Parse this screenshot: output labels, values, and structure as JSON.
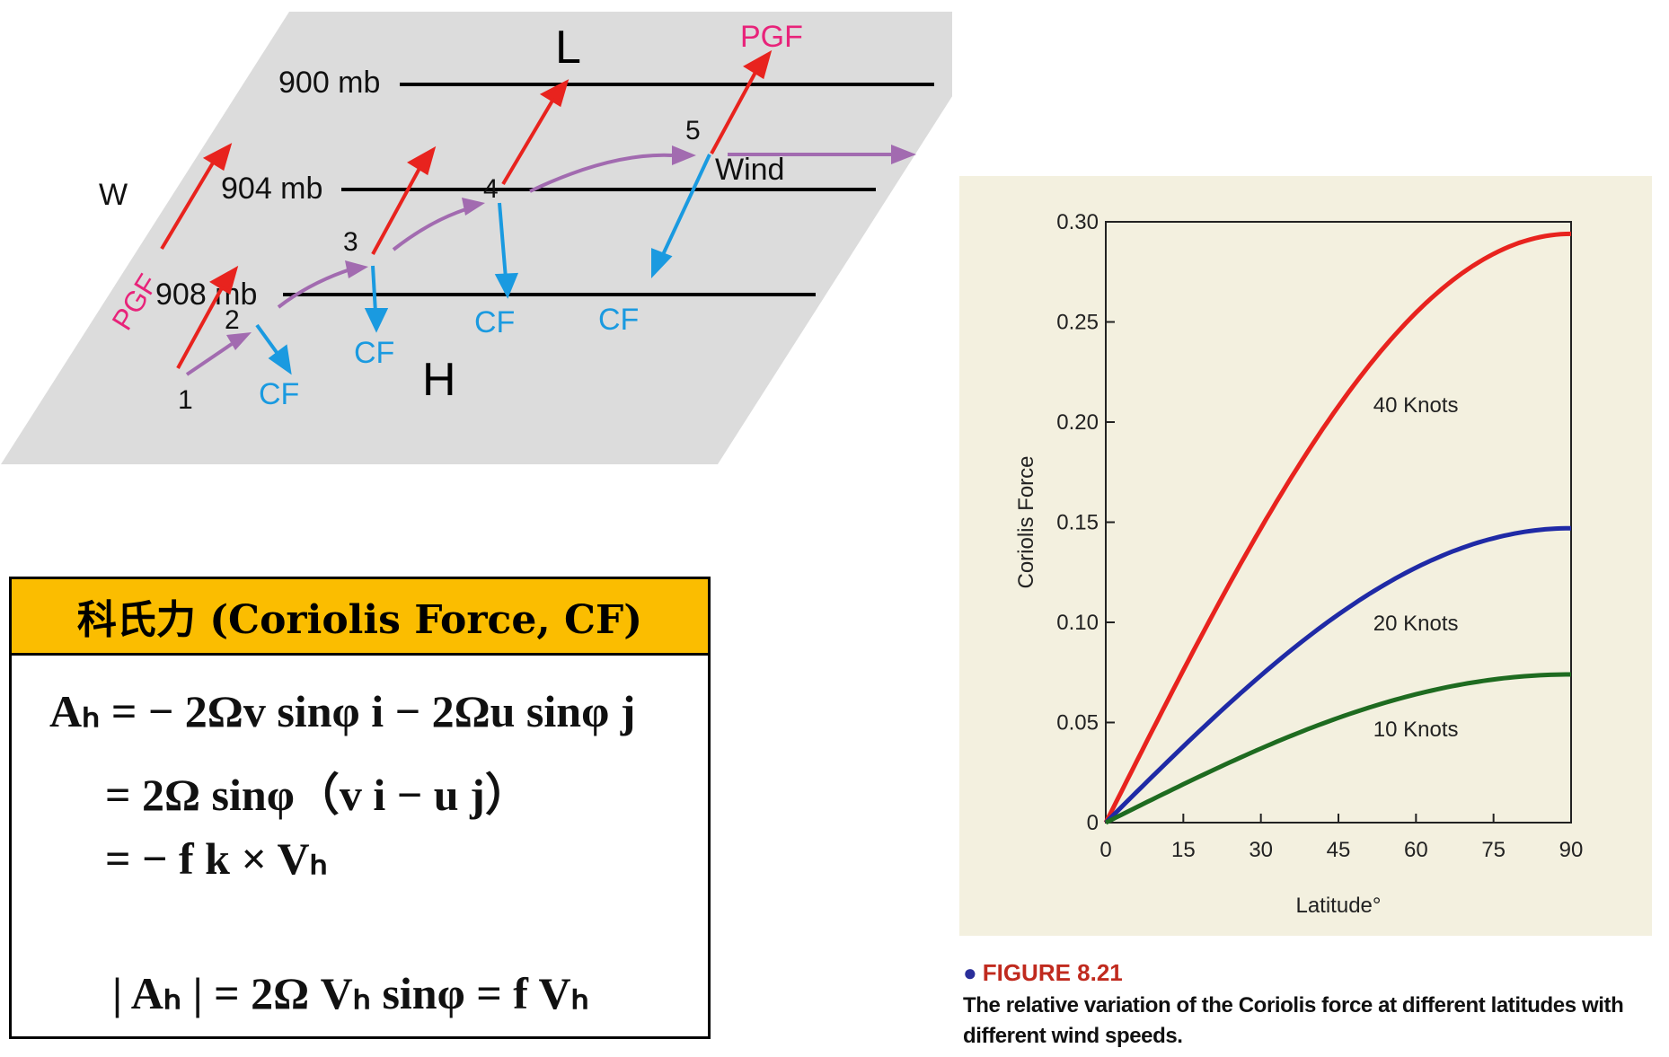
{
  "diagram": {
    "levels": [
      "900 mb",
      "904 mb",
      "908 mb"
    ],
    "low_label": "L",
    "high_label": "H",
    "west_label": "W",
    "pgf_label": "PGF",
    "cf_label": "CF",
    "wind_label": "Wind",
    "points": [
      "1",
      "2",
      "3",
      "4",
      "5"
    ],
    "colors": {
      "pgf": "#e8231e",
      "cf": "#1a9ae0",
      "wind": "#a26bb0",
      "pgf_text": "#e8237a",
      "plane": "#dcdcdc"
    }
  },
  "formula_box": {
    "title": "科氏力 (Coriolis Force, CF)",
    "lines": [
      "Aₕ = − 2Ωv sinφ i − 2Ωu sinφ j",
      "= 2Ω sinφ（v i − u j）",
      "= − f k × Vₕ",
      "| Aₕ | = 2Ω Vₕ sinφ = f Vₕ"
    ],
    "header_color": "#fbbd00"
  },
  "figure": {
    "caption_title": "FIGURE 8.21",
    "caption_text": "The relative variation of the Coriolis force at different latitudes with different wind speeds."
  },
  "chart_data": {
    "type": "line",
    "xlabel": "Latitude°",
    "ylabel": "Coriolis Force",
    "xlim": [
      0,
      90
    ],
    "ylim": [
      0,
      0.3
    ],
    "xticks": [
      "0",
      "15",
      "30",
      "45",
      "60",
      "75",
      "90"
    ],
    "yticks": [
      "0",
      "0.05",
      "0.10",
      "0.15",
      "0.20",
      "0.25",
      "0.30"
    ],
    "x": [
      0,
      15,
      30,
      45,
      60,
      75,
      90
    ],
    "series": [
      {
        "name": "40 Knots",
        "color": "#e8231e",
        "values": [
          0,
          0.076,
          0.147,
          0.208,
          0.255,
          0.284,
          0.294
        ]
      },
      {
        "name": "20 Knots",
        "color": "#1f2aa6",
        "values": [
          0,
          0.038,
          0.074,
          0.104,
          0.127,
          0.142,
          0.147
        ]
      },
      {
        "name": "10 Knots",
        "color": "#1e6b20",
        "values": [
          0,
          0.019,
          0.037,
          0.052,
          0.064,
          0.071,
          0.074
        ]
      }
    ],
    "grid": false
  }
}
